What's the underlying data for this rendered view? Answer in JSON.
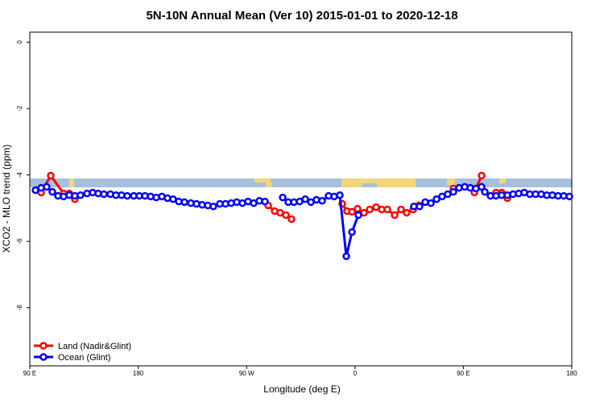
{
  "chart_data": {
    "type": "line",
    "title": "5N-10N Annual Mean (Ver 10)   2015-01-01 to 2020-12-18",
    "x_label": "Longitude (deg E)",
    "y_label": "XCO2 - MLO trend (ppm)",
    "xlim": [
      90,
      540
    ],
    "ylim": [
      -9.75,
      0.3
    ],
    "xticks": [
      {
        "value": 90,
        "label": "90 E"
      },
      {
        "value": 180,
        "label": "180"
      },
      {
        "value": 270,
        "label": "90 W"
      },
      {
        "value": 360,
        "label": "0"
      },
      {
        "value": 450,
        "label": "90 E"
      },
      {
        "value": 540,
        "label": "180"
      }
    ],
    "yticks": [
      0,
      -2,
      -4,
      -6,
      -8
    ],
    "grid": false,
    "legend": "bottom-left",
    "series": [
      {
        "name": "Land (Nadir&Glint)",
        "color": "#ff0000",
        "x": [
          99.4,
          107.4,
          118.1,
          122.8,
          127.4,
          null,
          287.9,
          293.3,
          297.9,
          302.6,
          307.3,
          null,
          349.4,
          353.4,
          357.5,
          362.1,
          367.5,
          372.2,
          377.5,
          382.2,
          386.9,
          392.9,
          398.2,
          402.9,
          408.3,
          413,
          null,
          441.7,
          null,
          459.1,
          465.1,
          null,
          477.1,
          481.8,
          486.5
        ],
        "values": [
          -4.53,
          -4.02,
          -4.56,
          -4.56,
          -4.73,
          null,
          -4.92,
          -5.09,
          -5.14,
          -5.21,
          -5.33,
          null,
          -4.87,
          -5.09,
          -5.11,
          -5.02,
          -5.14,
          -5.04,
          -4.97,
          -5.04,
          -5.04,
          -5.21,
          -5.04,
          -5.14,
          -5.04,
          -4.92,
          null,
          -4.41,
          null,
          -4.53,
          -4.02,
          null,
          -4.53,
          -4.53,
          -4.7
        ]
      },
      {
        "name": "Ocean (Glint)",
        "color": "#0000ff",
        "x": [
          94.7,
          99.4,
          104,
          108.7,
          113.4,
          118.1,
          122.8,
          127.4,
          132.1,
          137.5,
          142.2,
          146.8,
          151.5,
          156.9,
          161.5,
          166.2,
          170.9,
          176.3,
          180.9,
          185.6,
          190.3,
          195,
          199.7,
          204.3,
          209,
          213.7,
          218.4,
          223.7,
          228.4,
          233.1,
          237.8,
          242.4,
          247.8,
          252.5,
          257.2,
          261.8,
          266.5,
          271.2,
          275.9,
          280.6,
          285.2,
          null,
          300,
          304.6,
          309.3,
          314,
          318.7,
          323.4,
          328,
          332.7,
          338.1,
          342.7,
          347.4,
          352.8,
          357.5,
          362.8,
          null,
          408.9,
          413.6,
          418.3,
          423,
          427.7,
          432.3,
          437,
          441.7,
          446.4,
          451.1,
          455.7,
          460.4,
          465.1,
          467.8,
          472.5,
          477.1,
          481.8,
          486.5,
          491.2,
          495.9,
          500.5,
          505.2,
          509.9,
          514.6,
          519.3,
          523.9,
          528.6,
          533.3,
          538
        ],
        "values": [
          -4.46,
          -4.39,
          -4.36,
          -4.51,
          -4.63,
          -4.65,
          -4.61,
          -4.63,
          -4.61,
          -4.56,
          -4.53,
          -4.56,
          -4.58,
          -4.58,
          -4.61,
          -4.61,
          -4.63,
          -4.63,
          -4.63,
          -4.63,
          -4.65,
          -4.68,
          -4.65,
          -4.7,
          -4.73,
          -4.8,
          -4.82,
          -4.85,
          -4.87,
          -4.9,
          -4.92,
          -4.95,
          -4.87,
          -4.87,
          -4.85,
          -4.82,
          -4.85,
          -4.8,
          -4.85,
          -4.78,
          -4.8,
          null,
          -4.68,
          -4.82,
          -4.82,
          -4.8,
          -4.73,
          -4.82,
          -4.75,
          -4.78,
          -4.63,
          -4.65,
          -4.61,
          -6.45,
          -5.72,
          -5.21,
          null,
          -4.95,
          -4.95,
          -4.82,
          -4.85,
          -4.73,
          -4.65,
          -4.58,
          -4.51,
          -4.39,
          -4.36,
          -4.39,
          -4.41,
          -4.36,
          -4.51,
          -4.63,
          -4.63,
          -4.61,
          -4.61,
          -4.58,
          -4.56,
          -4.53,
          -4.58,
          -4.58,
          -4.58,
          -4.61,
          -4.61,
          -4.63,
          -4.63,
          -4.65
        ]
      }
    ]
  }
}
